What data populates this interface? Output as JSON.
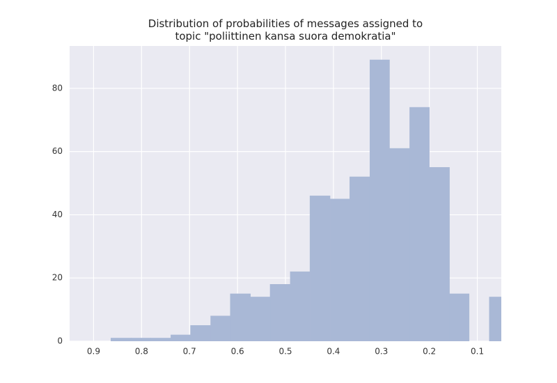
{
  "chart_data": {
    "type": "histogram",
    "title": "Distribution of probabilities of messages assigned to\ntopic \"poliittinen kansa suora demokratia\"",
    "bins": [
      0.034,
      0.075,
      0.117,
      0.158,
      0.2,
      0.241,
      0.283,
      0.324,
      0.366,
      0.407,
      0.449,
      0.49,
      0.532,
      0.573,
      0.615,
      0.656,
      0.698,
      0.739,
      0.781,
      0.822,
      0.864
    ],
    "counts": [
      14,
      0,
      15,
      55,
      74,
      61,
      89,
      52,
      45,
      46,
      22,
      18,
      14,
      15,
      8,
      5,
      2,
      1,
      1,
      1
    ],
    "color": "#a9b8d6",
    "xlim": [
      0.95,
      0.05
    ],
    "xticks": [
      0.9,
      0.8,
      0.7,
      0.6,
      0.5,
      0.4,
      0.3,
      0.2,
      0.1
    ],
    "ylim": [
      0,
      93.4
    ],
    "yticks": [
      0,
      20,
      40,
      60,
      80
    ],
    "grid": true,
    "background": "#eaeaf2"
  }
}
